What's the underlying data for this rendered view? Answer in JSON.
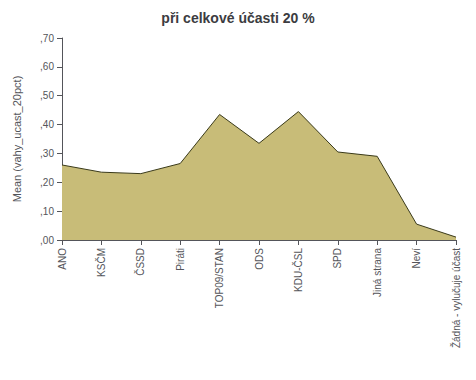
{
  "chart_data": {
    "type": "area",
    "title": "při celkové účasti 20 %",
    "ylabel": "Mean (vahy_ucast_20pct)",
    "categories": [
      "ANO",
      "KSČM",
      "ČSSD",
      "Piráti",
      "TOP09/STAN",
      "ODS",
      "KDU-ČSL",
      "SPD",
      "Jiná strana",
      "Neví",
      "Žádná - vylučuje účast"
    ],
    "values": [
      0.26,
      0.235,
      0.23,
      0.265,
      0.435,
      0.335,
      0.445,
      0.305,
      0.29,
      0.055,
      0.01
    ],
    "color": "#C8BC78",
    "ylim": [
      0.0,
      0.7
    ],
    "yticks": [
      {
        "value": 0.0,
        "label": ",00"
      },
      {
        "value": 0.1,
        "label": ",10"
      },
      {
        "value": 0.2,
        "label": ",20"
      },
      {
        "value": 0.3,
        "label": ",30"
      },
      {
        "value": 0.4,
        "label": ",40"
      },
      {
        "value": 0.5,
        "label": ",50"
      },
      {
        "value": 0.6,
        "label": ",60"
      },
      {
        "value": 0.7,
        "label": ",70"
      }
    ],
    "grid": false
  }
}
